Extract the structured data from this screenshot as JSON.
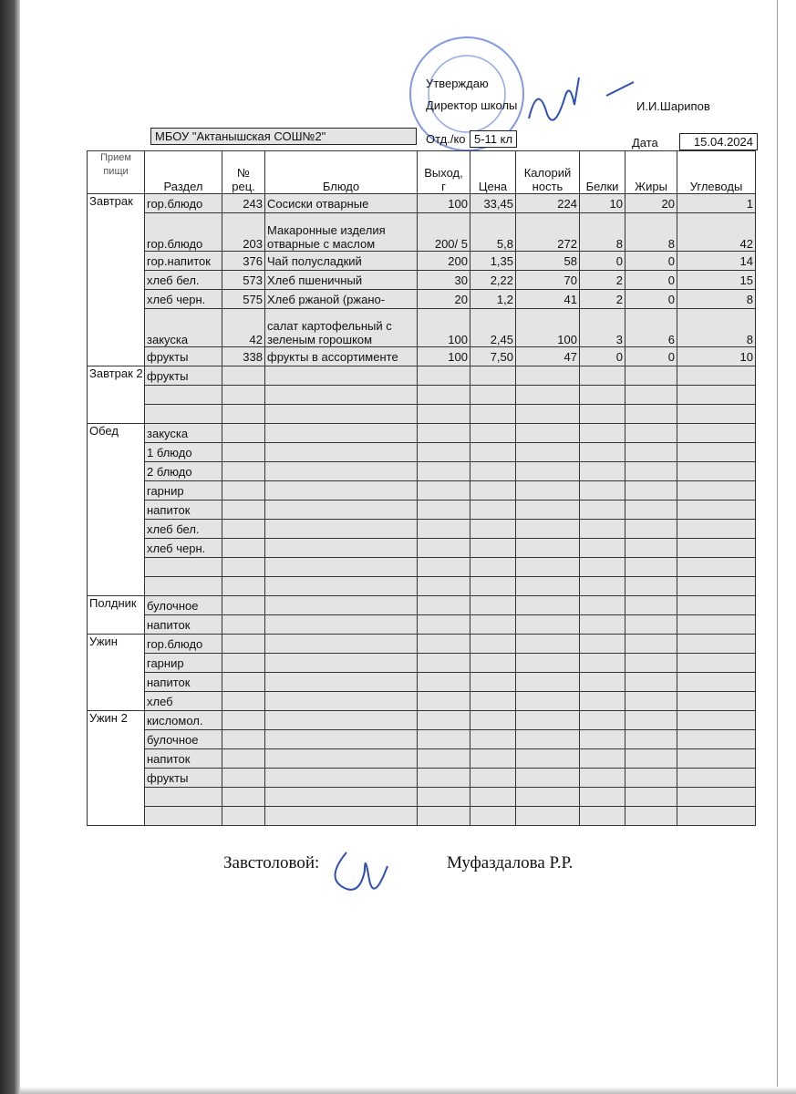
{
  "header": {
    "approve": "Утверждаю",
    "director": "Директор школы",
    "director_name": "И.И.Шарипов",
    "school": "МБОУ \"Актанышская СОШ№2\"",
    "dept_label": "Отд./ко",
    "dept": "5-11 кл",
    "date_label": "Дата",
    "date": "15.04.2024"
  },
  "table": {
    "columns": [
      "Прием\nпищи",
      "Раздел",
      "№\nрец.",
      "Блюдо",
      "Выход,\nг",
      "Цена",
      "Калорий\nность",
      "Белки",
      "Жиры",
      "Углеводы"
    ],
    "meals": [
      {
        "name": "Завтрак",
        "rows": [
          {
            "section": "гор.блюдо",
            "recipe": 243,
            "dish": "Сосиски отварные",
            "yield": 100,
            "price": "33,45",
            "kcal": 224,
            "protein": 10,
            "fat": 20,
            "carbs": 1
          },
          {
            "section": "гор.блюдо",
            "recipe": 203,
            "dish": "Макаронные изделия отварные с маслом",
            "yield": "200/ 5",
            "price": "5,8",
            "kcal": 272,
            "protein": 8,
            "fat": 8,
            "carbs": 42
          },
          {
            "section": "гор.напиток",
            "recipe": 376,
            "dish": "Чай полусладкий",
            "yield": 200,
            "price": "1,35",
            "kcal": 58,
            "protein": 0,
            "fat": 0,
            "carbs": 14
          },
          {
            "section": "хлеб бел.",
            "recipe": 573,
            "dish": "Хлеб пшеничный",
            "yield": 30,
            "price": "2,22",
            "kcal": 70,
            "protein": 2,
            "fat": 0,
            "carbs": 15
          },
          {
            "section": "хлеб черн.",
            "recipe": 575,
            "dish": "Хлеб ржаной (ржано-",
            "yield": 20,
            "price": "1,2",
            "kcal": 41,
            "protein": 2,
            "fat": 0,
            "carbs": 8
          },
          {
            "section": "закуска",
            "recipe": 42,
            "dish": "салат картофельный с зеленым горошком",
            "yield": 100,
            "price": "2,45",
            "kcal": 100,
            "protein": 3,
            "fat": 6,
            "carbs": 8
          },
          {
            "section": "фрукты",
            "recipe": 338,
            "dish": "фрукты в ассортименте",
            "yield": 100,
            "price": "7,50",
            "kcal": 47,
            "protein": 0,
            "fat": 0,
            "carbs": 10
          }
        ]
      },
      {
        "name": "Завтрак 2",
        "rows": [
          {
            "section": "фрукты"
          }
        ]
      },
      {
        "name": "Обед",
        "rows": [
          {
            "section": "закуска"
          },
          {
            "section": "1 блюдо"
          },
          {
            "section": "2 блюдо"
          },
          {
            "section": "гарнир"
          },
          {
            "section": "напиток"
          },
          {
            "section": "хлеб бел."
          },
          {
            "section": "хлеб черн."
          }
        ]
      },
      {
        "name": "Полдник",
        "rows": [
          {
            "section": "булочное"
          },
          {
            "section": "напиток"
          }
        ]
      },
      {
        "name": "Ужин",
        "rows": [
          {
            "section": "гор.блюдо"
          },
          {
            "section": "гарнир"
          },
          {
            "section": "напиток"
          },
          {
            "section": "хлеб"
          }
        ]
      },
      {
        "name": "Ужин 2",
        "rows": [
          {
            "section": "кисломол."
          },
          {
            "section": "булочное"
          },
          {
            "section": "напиток"
          },
          {
            "section": "фрукты"
          }
        ]
      }
    ]
  },
  "footer": {
    "label": "Завстоловой:",
    "name": "Муфаздалова Р.Р."
  }
}
